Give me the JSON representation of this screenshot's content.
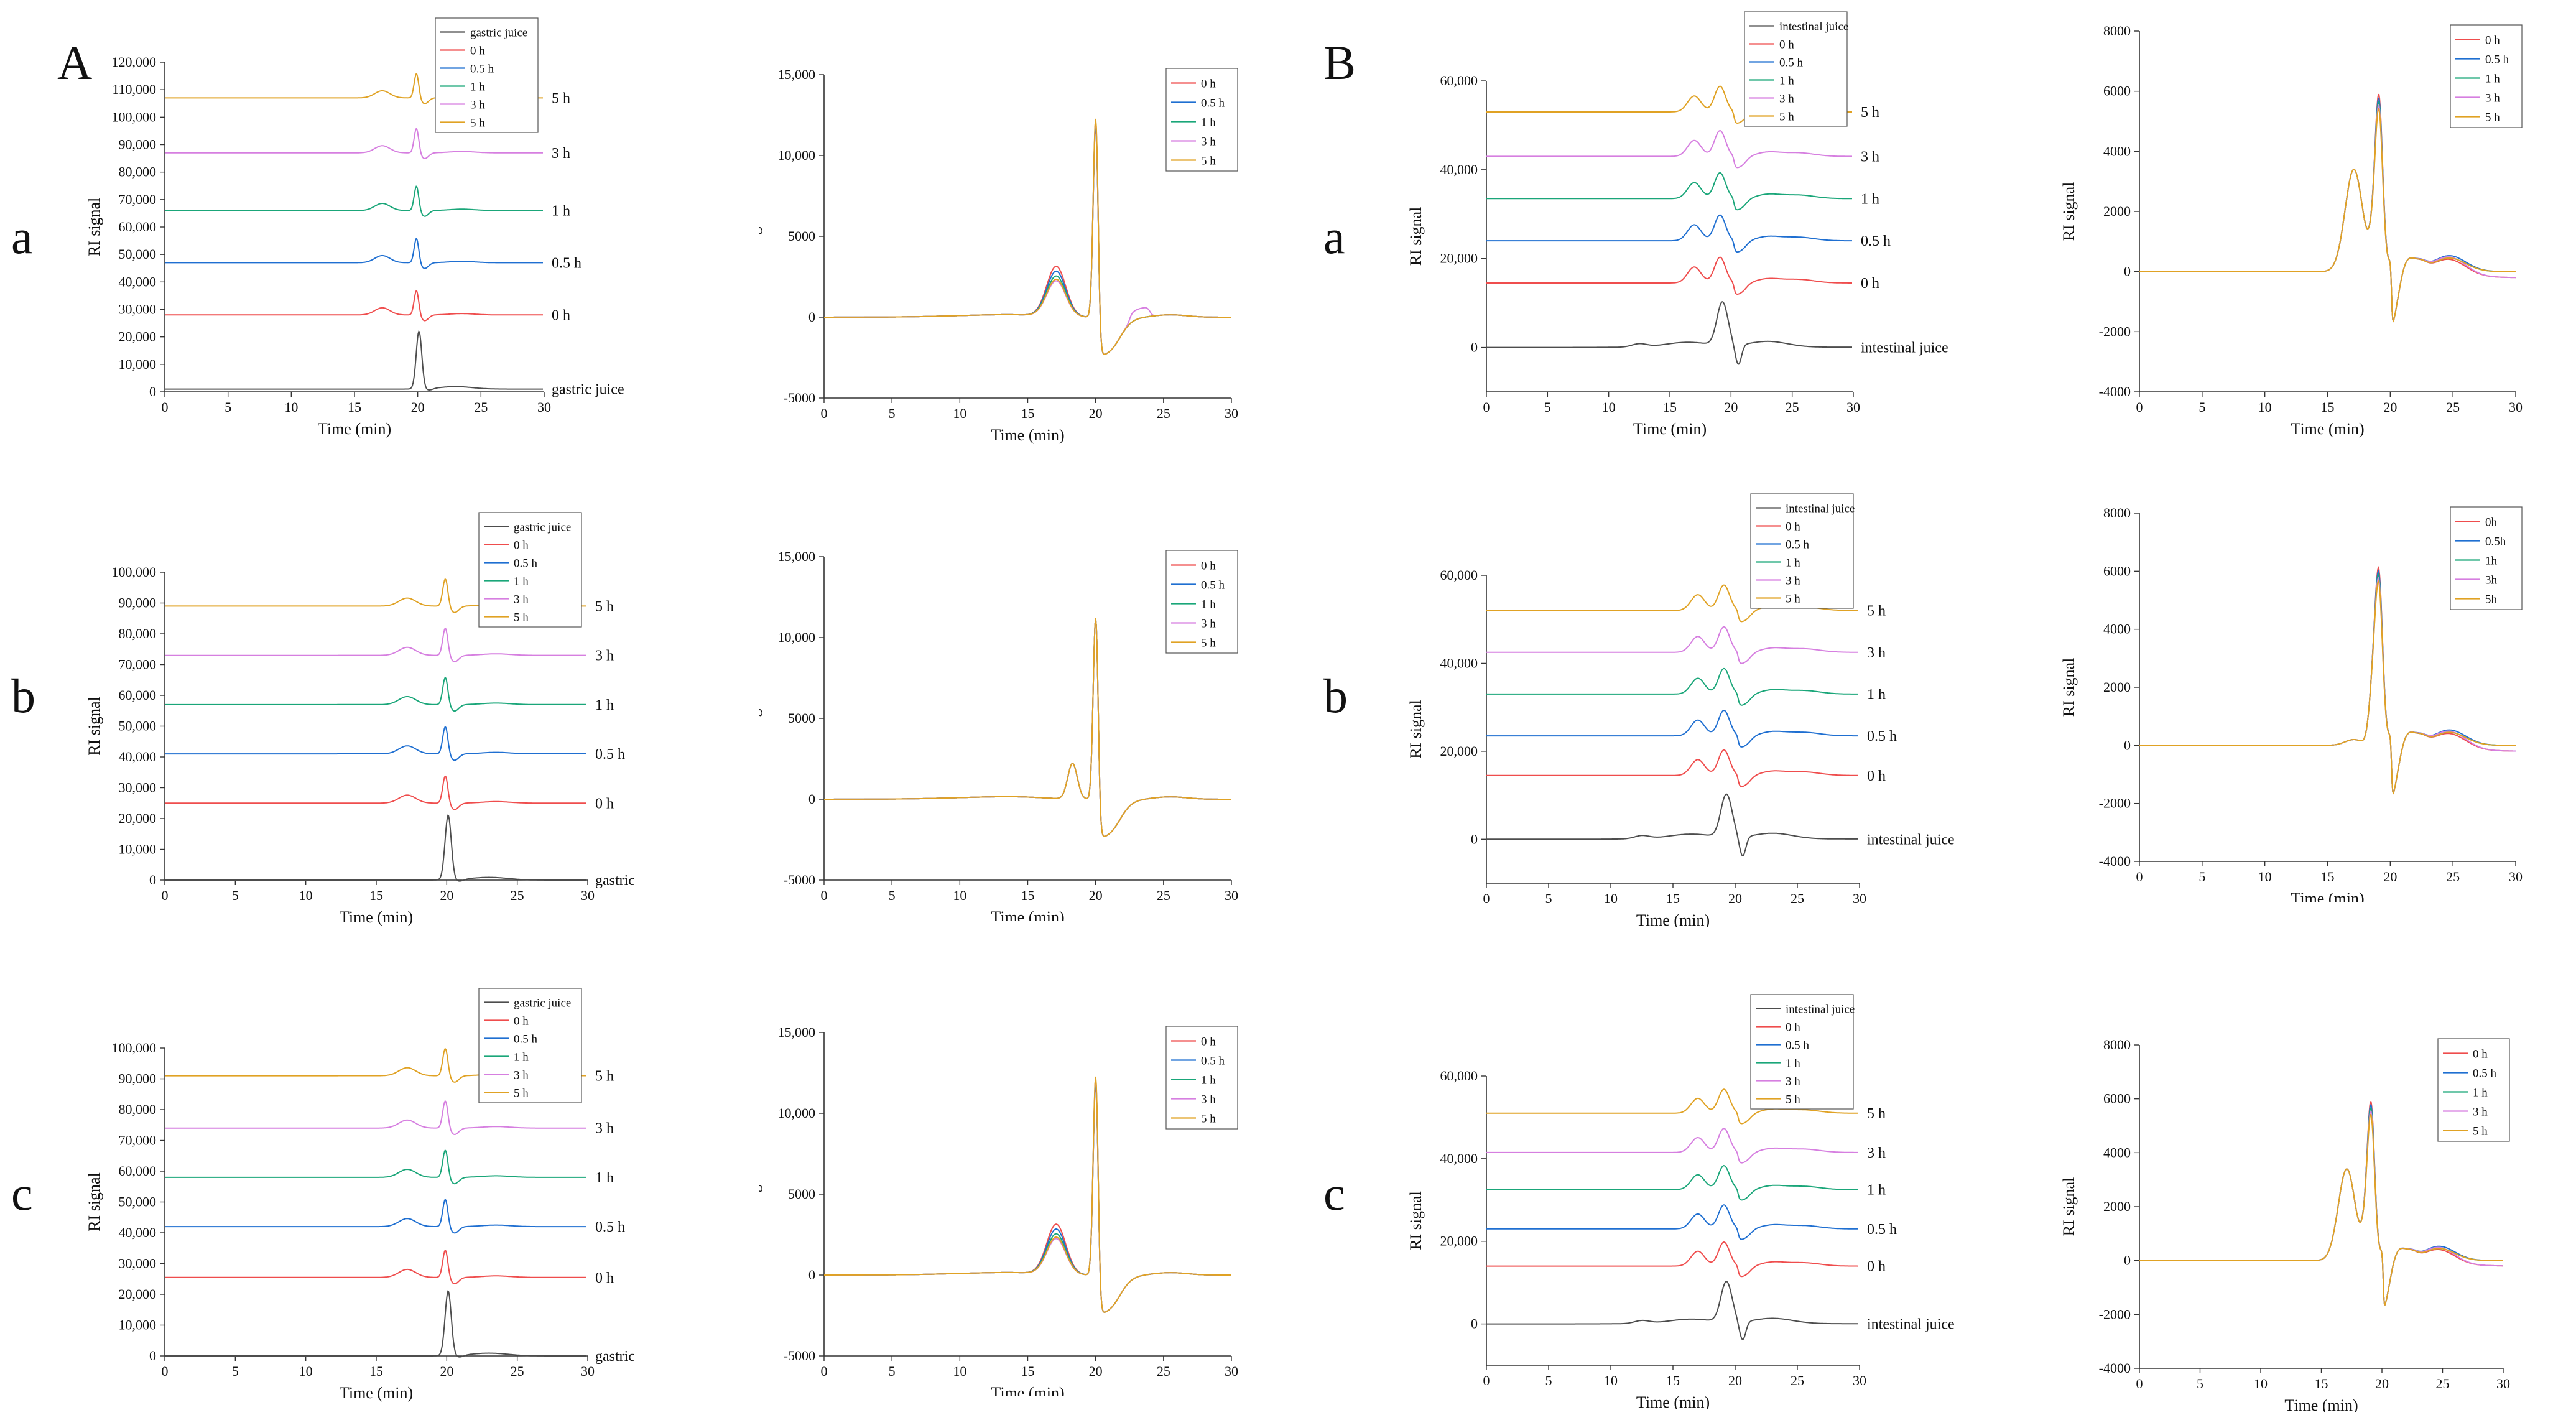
{
  "panel_labels": {
    "A": "A",
    "B": "B"
  },
  "row_labels": [
    "a",
    "b",
    "c"
  ],
  "colors": {
    "gastric": "#4d4d4d",
    "h0": "#ef4d4d",
    "h05": "#1f6fd1",
    "h1": "#1aa679",
    "h3": "#d67fe0",
    "h5": "#e0a224"
  },
  "chart_data": [
    {
      "id": "Aa1",
      "type": "line",
      "style": "stacked",
      "juice": "gastric",
      "xlabel": "Time (min)",
      "ylabel": "RI signal",
      "xlim": [
        0,
        30
      ],
      "xticks": [
        0,
        5,
        10,
        15,
        20,
        25,
        30
      ],
      "ylim": [
        0,
        120000
      ],
      "yticks": [
        0,
        10000,
        20000,
        30000,
        40000,
        50000,
        60000,
        70000,
        80000,
        90000,
        100000,
        110000,
        120000
      ],
      "ytick_labels": [
        "0",
        "10,000",
        "20,000",
        "30,000",
        "40,000",
        "50,000",
        "60,000",
        "70,000",
        "80,000",
        "90,000",
        "100,000",
        "110,000",
        "120,000"
      ],
      "legend": [
        "gastric juice",
        "0 h",
        "0.5 h",
        "1 h",
        "3 h",
        "5 h"
      ],
      "series": [
        {
          "name": "gastric juice",
          "label": "gastric juice",
          "color": "#4d4d4d",
          "baseline": 1000
        },
        {
          "name": "0 h",
          "label": "0 h",
          "color": "#ef4d4d",
          "baseline": 28000
        },
        {
          "name": "0.5 h",
          "label": "0.5 h",
          "color": "#1f6fd1",
          "baseline": 47000
        },
        {
          "name": "1 h",
          "label": "1 h",
          "color": "#1aa679",
          "baseline": 66000
        },
        {
          "name": "3 h",
          "label": "3 h",
          "color": "#d67fe0",
          "baseline": 87000
        },
        {
          "name": "5 h",
          "label": "5 h",
          "color": "#e0a224",
          "baseline": 107000
        }
      ]
    },
    {
      "id": "Aa2",
      "type": "line",
      "style": "overlay",
      "juice": "gastric",
      "xlabel": "Time (min)",
      "ylabel": "RI signal",
      "xlim": [
        0,
        30
      ],
      "xticks": [
        0,
        5,
        10,
        15,
        20,
        25,
        30
      ],
      "ylim": [
        -5000,
        15000
      ],
      "yticks": [
        -5000,
        0,
        5000,
        10000,
        15000
      ],
      "ytick_labels": [
        "-5000",
        "0",
        "5000",
        "10,000",
        "15,000"
      ],
      "legend": [
        "0 h",
        "0.5 h",
        "1 h",
        "3 h",
        "5 h"
      ],
      "series": [
        {
          "name": "0 h",
          "color": "#ef4d4d"
        },
        {
          "name": "0.5 h",
          "color": "#1f6fd1"
        },
        {
          "name": "1 h",
          "color": "#1aa679"
        },
        {
          "name": "3 h",
          "color": "#d67fe0"
        },
        {
          "name": "5 h",
          "color": "#e0a224"
        }
      ]
    },
    {
      "id": "Ab1",
      "type": "line",
      "style": "stacked",
      "juice": "gastric",
      "xlabel": "Time (min)",
      "ylabel": "RI signal",
      "xlim": [
        0,
        30
      ],
      "xticks": [
        0,
        5,
        10,
        15,
        20,
        25,
        30
      ],
      "ylim": [
        0,
        100000
      ],
      "yticks": [
        0,
        10000,
        20000,
        30000,
        40000,
        50000,
        60000,
        70000,
        80000,
        90000,
        100000
      ],
      "ytick_labels": [
        "0",
        "10,000",
        "20,000",
        "30,000",
        "40,000",
        "50,000",
        "60,000",
        "70,000",
        "80,000",
        "90,000",
        "100,000"
      ],
      "legend": [
        "gastric juice",
        "0 h",
        "0.5 h",
        "1 h",
        "3 h",
        "5 h"
      ],
      "series": [
        {
          "name": "gastric juice",
          "label": "gastric juice",
          "color": "#4d4d4d",
          "baseline": 0
        },
        {
          "name": "0 h",
          "label": "0 h",
          "color": "#ef4d4d",
          "baseline": 25000
        },
        {
          "name": "0.5 h",
          "label": "0.5 h",
          "color": "#1f6fd1",
          "baseline": 41000
        },
        {
          "name": "1 h",
          "label": "1 h",
          "color": "#1aa679",
          "baseline": 57000
        },
        {
          "name": "3 h",
          "label": "3 h",
          "color": "#d67fe0",
          "baseline": 73000
        },
        {
          "name": "5 h",
          "label": "5 h",
          "color": "#e0a224",
          "baseline": 89000
        }
      ]
    },
    {
      "id": "Ab2",
      "type": "line",
      "style": "overlay",
      "juice": "gastric",
      "xlabel": "Time (min)",
      "ylabel": "RI signal",
      "xlim": [
        0,
        30
      ],
      "xticks": [
        0,
        5,
        10,
        15,
        20,
        25,
        30
      ],
      "ylim": [
        -5000,
        15000
      ],
      "yticks": [
        -5000,
        0,
        5000,
        10000,
        15000
      ],
      "ytick_labels": [
        "-5000",
        "0",
        "5000",
        "10,000",
        "15,000"
      ],
      "legend": [
        "0 h",
        "0.5 h",
        "1 h",
        "3 h",
        "5 h"
      ],
      "series": [
        {
          "name": "0 h",
          "color": "#ef4d4d"
        },
        {
          "name": "0.5 h",
          "color": "#1f6fd1"
        },
        {
          "name": "1 h",
          "color": "#1aa679"
        },
        {
          "name": "3 h",
          "color": "#d67fe0"
        },
        {
          "name": "5 h",
          "color": "#e0a224"
        }
      ]
    },
    {
      "id": "Ac1",
      "type": "line",
      "style": "stacked",
      "juice": "gastric",
      "xlabel": "Time (min)",
      "ylabel": "RI signal",
      "xlim": [
        0,
        30
      ],
      "xticks": [
        0,
        5,
        10,
        15,
        20,
        25,
        30
      ],
      "ylim": [
        0,
        100000
      ],
      "yticks": [
        0,
        10000,
        20000,
        30000,
        40000,
        50000,
        60000,
        70000,
        80000,
        90000,
        100000
      ],
      "ytick_labels": [
        "0",
        "10,000",
        "20,000",
        "30,000",
        "40,000",
        "50,000",
        "60,000",
        "70,000",
        "80,000",
        "90,000",
        "100,000"
      ],
      "legend": [
        "gastric juice",
        "0 h",
        "0.5 h",
        "1 h",
        "3 h",
        "5 h"
      ],
      "series": [
        {
          "name": "gastric juice",
          "label": "gastric juice",
          "color": "#4d4d4d",
          "baseline": 0
        },
        {
          "name": "0 h",
          "label": "0 h",
          "color": "#ef4d4d",
          "baseline": 25500
        },
        {
          "name": "0.5 h",
          "label": "0.5 h",
          "color": "#1f6fd1",
          "baseline": 42000
        },
        {
          "name": "1 h",
          "label": "1 h",
          "color": "#1aa679",
          "baseline": 58000
        },
        {
          "name": "3 h",
          "label": "3 h",
          "color": "#d67fe0",
          "baseline": 74000
        },
        {
          "name": "5 h",
          "label": "5 h",
          "color": "#e0a224",
          "baseline": 91000
        }
      ]
    },
    {
      "id": "Ac2",
      "type": "line",
      "style": "overlay",
      "juice": "gastric",
      "xlabel": "Time (min)",
      "ylabel": "RI signal",
      "xlim": [
        0,
        30
      ],
      "xticks": [
        0,
        5,
        10,
        15,
        20,
        25,
        30
      ],
      "ylim": [
        -5000,
        15000
      ],
      "yticks": [
        -5000,
        0,
        5000,
        10000,
        15000
      ],
      "ytick_labels": [
        "-5000",
        "0",
        "5000",
        "10,000",
        "15,000"
      ],
      "legend": [
        "0 h",
        "0.5 h",
        "1 h",
        "3 h",
        "5 h"
      ],
      "series": [
        {
          "name": "0 h",
          "color": "#ef4d4d"
        },
        {
          "name": "0.5 h",
          "color": "#1f6fd1"
        },
        {
          "name": "1 h",
          "color": "#1aa679"
        },
        {
          "name": "3 h",
          "color": "#d67fe0"
        },
        {
          "name": "5 h",
          "color": "#e0a224"
        }
      ]
    },
    {
      "id": "Ba1",
      "type": "line",
      "style": "stacked",
      "juice": "intestinal",
      "xlabel": "Time (min)",
      "ylabel": "RI signal",
      "xlim": [
        0,
        30
      ],
      "xticks": [
        0,
        5,
        10,
        15,
        20,
        25,
        30
      ],
      "ylim": [
        -10000,
        60000
      ],
      "yticks": [
        0,
        20000,
        40000,
        60000
      ],
      "ytick_labels": [
        "0",
        "20,000",
        "40,000",
        "60,000"
      ],
      "legend": [
        "intestinal juice",
        "0 h",
        "0.5 h",
        "1 h",
        "3 h",
        "5 h"
      ],
      "series": [
        {
          "name": "intestinal juice",
          "label": "intestinal juice",
          "color": "#4d4d4d",
          "baseline": 0
        },
        {
          "name": "0 h",
          "label": "0 h",
          "color": "#ef4d4d",
          "baseline": 14500
        },
        {
          "name": "0.5 h",
          "label": "0.5 h",
          "color": "#1f6fd1",
          "baseline": 24000
        },
        {
          "name": "1 h",
          "label": "1 h",
          "color": "#1aa679",
          "baseline": 33500
        },
        {
          "name": "3 h",
          "label": "3 h",
          "color": "#d67fe0",
          "baseline": 43000
        },
        {
          "name": "5 h",
          "label": "5 h",
          "color": "#e0a224",
          "baseline": 53000
        }
      ]
    },
    {
      "id": "Ba2",
      "type": "line",
      "style": "overlay",
      "juice": "intestinal",
      "xlabel": "Time (min)",
      "ylabel": "RI signal",
      "xlim": [
        0,
        30
      ],
      "xticks": [
        0,
        5,
        10,
        15,
        20,
        25,
        30
      ],
      "ylim": [
        -4000,
        8000
      ],
      "yticks": [
        -4000,
        -2000,
        0,
        2000,
        4000,
        6000,
        8000
      ],
      "ytick_labels": [
        "-4000",
        "-2000",
        "0",
        "2000",
        "4000",
        "6000",
        "8000"
      ],
      "legend": [
        "0 h",
        "0.5 h",
        "1 h",
        "3 h",
        "5 h"
      ],
      "series": [
        {
          "name": "0 h",
          "color": "#ef4d4d"
        },
        {
          "name": "0.5 h",
          "color": "#1f6fd1"
        },
        {
          "name": "1 h",
          "color": "#1aa679"
        },
        {
          "name": "3 h",
          "color": "#d67fe0"
        },
        {
          "name": "5 h",
          "color": "#e0a224"
        }
      ]
    },
    {
      "id": "Bb1",
      "type": "line",
      "style": "stacked",
      "juice": "intestinal",
      "xlabel": "Time (min)",
      "ylabel": "RI signal",
      "xlim": [
        0,
        30
      ],
      "xticks": [
        0,
        5,
        10,
        15,
        20,
        25,
        30
      ],
      "ylim": [
        -10000,
        60000
      ],
      "yticks": [
        0,
        20000,
        40000,
        60000
      ],
      "ytick_labels": [
        "0",
        "20,000",
        "40,000",
        "60,000"
      ],
      "legend": [
        "intestinal juice",
        "0 h",
        "0.5 h",
        "1 h",
        "3 h",
        "5 h"
      ],
      "series": [
        {
          "name": "intestinal juice",
          "label": "intestinal juice",
          "color": "#4d4d4d",
          "baseline": 0
        },
        {
          "name": "0 h",
          "label": "0 h",
          "color": "#ef4d4d",
          "baseline": 14500
        },
        {
          "name": "0.5 h",
          "label": "0.5 h",
          "color": "#1f6fd1",
          "baseline": 23500
        },
        {
          "name": "1 h",
          "label": "1 h",
          "color": "#1aa679",
          "baseline": 33000
        },
        {
          "name": "3 h",
          "label": "3 h",
          "color": "#d67fe0",
          "baseline": 42500
        },
        {
          "name": "5 h",
          "label": "5 h",
          "color": "#e0a224",
          "baseline": 52000
        }
      ]
    },
    {
      "id": "Bb2",
      "type": "line",
      "style": "overlay",
      "juice": "intestinal",
      "xlabel": "Time (min)",
      "ylabel": "RI signal",
      "xlim": [
        0,
        30
      ],
      "xticks": [
        0,
        5,
        10,
        15,
        20,
        25,
        30
      ],
      "ylim": [
        -4000,
        8000
      ],
      "yticks": [
        -4000,
        -2000,
        0,
        2000,
        4000,
        6000,
        8000
      ],
      "ytick_labels": [
        "-4000",
        "-2000",
        "0",
        "2000",
        "4000",
        "6000",
        "8000"
      ],
      "legend": [
        "0h",
        "0.5h",
        "1h",
        "3h",
        "5h"
      ],
      "series": [
        {
          "name": "0h",
          "color": "#ef4d4d"
        },
        {
          "name": "0.5h",
          "color": "#1f6fd1"
        },
        {
          "name": "1h",
          "color": "#1aa679"
        },
        {
          "name": "3h",
          "color": "#d67fe0"
        },
        {
          "name": "5h",
          "color": "#e0a224"
        }
      ]
    },
    {
      "id": "Bc1",
      "type": "line",
      "style": "stacked",
      "juice": "intestinal",
      "xlabel": "Time (min)",
      "ylabel": "RI signal",
      "xlim": [
        0,
        30
      ],
      "xticks": [
        0,
        5,
        10,
        15,
        20,
        25,
        30
      ],
      "ylim": [
        -10000,
        60000
      ],
      "yticks": [
        0,
        20000,
        40000,
        60000
      ],
      "ytick_labels": [
        "0",
        "20,000",
        "40,000",
        "60,000"
      ],
      "legend": [
        "intestinal juice",
        "0 h",
        "0.5 h",
        "1 h",
        "3 h",
        "5 h"
      ],
      "series": [
        {
          "name": "intestinal juice",
          "label": "intestinal juice",
          "color": "#4d4d4d",
          "baseline": 0
        },
        {
          "name": "0 h",
          "label": "0 h",
          "color": "#ef4d4d",
          "baseline": 14000
        },
        {
          "name": "0.5 h",
          "label": "0.5 h",
          "color": "#1f6fd1",
          "baseline": 23000
        },
        {
          "name": "1 h",
          "label": "1 h",
          "color": "#1aa679",
          "baseline": 32500
        },
        {
          "name": "3 h",
          "label": "3 h",
          "color": "#d67fe0",
          "baseline": 41500
        },
        {
          "name": "5 h",
          "label": "5 h",
          "color": "#e0a224",
          "baseline": 51000
        }
      ]
    },
    {
      "id": "Bc2",
      "type": "line",
      "style": "overlay",
      "juice": "intestinal",
      "xlabel": "Time (min)",
      "ylabel": "RI signal",
      "xlim": [
        0,
        30
      ],
      "xticks": [
        0,
        5,
        10,
        15,
        20,
        25,
        30
      ],
      "ylim": [
        -4000,
        8000
      ],
      "yticks": [
        -4000,
        -2000,
        0,
        2000,
        4000,
        6000,
        8000
      ],
      "ytick_labels": [
        "-4000",
        "-2000",
        "0",
        "2000",
        "4000",
        "6000",
        "8000"
      ],
      "legend": [
        "0 h",
        "0.5 h",
        "1 h",
        "3 h",
        "5 h"
      ],
      "series": [
        {
          "name": "0 h",
          "color": "#ef4d4d"
        },
        {
          "name": "0.5 h",
          "color": "#1f6fd1"
        },
        {
          "name": "1 h",
          "color": "#1aa679"
        },
        {
          "name": "3 h",
          "color": "#d67fe0"
        },
        {
          "name": "5 h",
          "color": "#e0a224"
        }
      ]
    }
  ]
}
